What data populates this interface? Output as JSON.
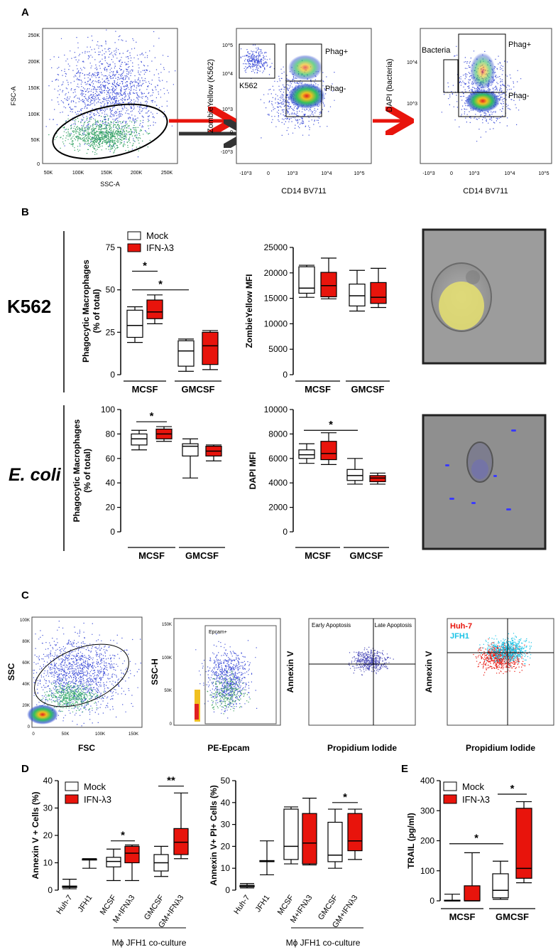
{
  "colors": {
    "mock": "#ffffff",
    "ifn": "#e8140c",
    "red_arrow": "#e8140c",
    "dark_arrow": "#333333",
    "cyan": "#19c3e6"
  },
  "panelA": {
    "letter": "A",
    "plot1": {
      "ylabel": "FSC-A",
      "xlabel": "SSC-A",
      "yticks": [
        "250K",
        "200K",
        "150K",
        "100K",
        "50K",
        "0"
      ],
      "xticks": [
        "50K",
        "100K",
        "150K",
        "200K",
        "250K"
      ]
    },
    "plot2": {
      "ylabel": "ZombieYellow (K562)",
      "xlabel": "CD14 BV711",
      "gates": [
        "K562",
        "Phag+",
        "Phag-"
      ],
      "yticks": [
        "10^5",
        "10^4",
        "10^3",
        "0",
        "-10^3"
      ],
      "xticks": [
        "-10^3",
        "0",
        "10^3",
        "10^4",
        "10^5"
      ]
    },
    "plot3": {
      "ylabel": "DAPI (bacteria)",
      "xlabel": "CD14 BV711",
      "gates": [
        "Bacteria",
        "Phag+",
        "Phag-"
      ],
      "yticks": [
        "10^4",
        "10^3"
      ],
      "xticks": [
        "-10^3",
        "0",
        "10^3",
        "10^4",
        "10^5"
      ]
    }
  },
  "panelB": {
    "letter": "B",
    "row_labels": [
      "K562",
      "E. coli"
    ],
    "legend": [
      "Mock",
      "IFN-λ3"
    ],
    "groups": [
      "MCSF",
      "GMCSF"
    ],
    "sig": "*"
  },
  "panelC": {
    "letter": "C",
    "plot1": {
      "ylabel": "SSC",
      "xlabel": "FSC",
      "yticks": [
        "100K",
        "80K",
        "60K",
        "40K",
        "20K",
        "0"
      ],
      "xticks": [
        "0",
        "50K",
        "100K",
        "150K"
      ]
    },
    "plot2": {
      "ylabel": "SSC-H",
      "xlabel": "PE-Epcam",
      "gate": "Epcam+",
      "yticks": [
        "150K",
        "100K",
        "50K",
        "0"
      ]
    },
    "plot3": {
      "ylabel": "Annexin V",
      "xlabel": "Propidium Iodide",
      "q1": "Early Apoptosis",
      "q2": "Late Apoptosis"
    },
    "plot4": {
      "ylabel": "Annexin V",
      "xlabel": "Propidium Iodide",
      "legend": [
        "Huh-7",
        "JFH1"
      ]
    }
  },
  "panelD": {
    "letter": "D",
    "coculture": "Mϕ JFH1 co-culture"
  },
  "panelE": {
    "letter": "E"
  },
  "chart_data": [
    {
      "id": "B_K562_pct",
      "type": "box",
      "ylabel": "Phagocytic Macrophages (% of total)",
      "ylim": [
        0,
        75
      ],
      "yticks": [
        0,
        25,
        50,
        75
      ],
      "categories": [
        "MCSF",
        "GMCSF"
      ],
      "series": [
        {
          "name": "Mock",
          "boxes": [
            [
              19,
              22,
              29,
              38,
              40
            ],
            [
              2,
              5,
              14,
              20,
              21
            ]
          ]
        },
        {
          "name": "IFN-λ3",
          "boxes": [
            [
              30,
              33,
              37,
              44,
              47
            ],
            [
              3,
              6,
              17,
              25,
              26
            ]
          ]
        }
      ],
      "sig": [
        {
          "from": 0,
          "to": 1,
          "level": 61,
          "label": "*"
        },
        {
          "from": 0,
          "to": 2,
          "level": 50,
          "label": "*"
        }
      ]
    },
    {
      "id": "B_K562_mfi",
      "type": "box",
      "ylabel": "ZombieYellow MFI",
      "ylim": [
        0,
        25000
      ],
      "yticks": [
        0,
        5000,
        10000,
        15000,
        20000,
        25000
      ],
      "categories": [
        "MCSF",
        "GMCSF"
      ],
      "series": [
        {
          "name": "Mock",
          "boxes": [
            [
              15200,
              16000,
              17000,
              21200,
              21500
            ],
            [
              12500,
              13500,
              15500,
              17800,
              20500
            ]
          ]
        },
        {
          "name": "IFN-λ3",
          "boxes": [
            [
              14900,
              15300,
              17500,
              20100,
              22900
            ],
            [
              13200,
              14000,
              15200,
              18100,
              20900
            ]
          ]
        }
      ],
      "sig": []
    },
    {
      "id": "B_Ecoli_pct",
      "type": "box",
      "ylabel": "Phagocytic Macrophages (% of total)",
      "ylim": [
        0,
        100
      ],
      "yticks": [
        0,
        20,
        40,
        60,
        80,
        100
      ],
      "categories": [
        "MCSF",
        "GMCSF"
      ],
      "series": [
        {
          "name": "Mock",
          "boxes": [
            [
              67,
              71,
              76,
              80,
              83
            ],
            [
              44,
              62,
              70,
              72,
              76
            ]
          ]
        },
        {
          "name": "IFN-λ3",
          "boxes": [
            [
              74,
              76,
              80,
              84,
              86
            ],
            [
              58,
              62,
              66,
              70,
              71
            ]
          ]
        }
      ],
      "sig": [
        {
          "from": 0,
          "to": 1,
          "level": 90,
          "label": "*"
        }
      ]
    },
    {
      "id": "B_Ecoli_mfi",
      "type": "box",
      "ylabel": "DAPI MFI",
      "ylim": [
        0,
        10000
      ],
      "yticks": [
        0,
        2000,
        4000,
        6000,
        8000,
        10000
      ],
      "categories": [
        "MCSF",
        "GMCSF"
      ],
      "series": [
        {
          "name": "Mock",
          "boxes": [
            [
              5600,
              6000,
              6300,
              6700,
              7200
            ],
            [
              3900,
              4200,
              4600,
              5100,
              6000
            ]
          ]
        },
        {
          "name": "IFN-λ3",
          "boxes": [
            [
              5500,
              5900,
              6400,
              7400,
              8100
            ],
            [
              3900,
              4100,
              4400,
              4600,
              4800
            ]
          ]
        }
      ],
      "sig": [
        {
          "from": 0,
          "to": 2,
          "level": 8300,
          "label": "*"
        }
      ]
    },
    {
      "id": "D_annexin",
      "type": "box",
      "ylabel": "Annexin V + Cells (%)",
      "ylim": [
        0,
        40
      ],
      "yticks": [
        0,
        10,
        20,
        30,
        40
      ],
      "categories": [
        "Huh-7",
        "JFH1",
        "MCSF",
        "M+IFNλ3",
        "GMCSF",
        "GM+IFNλ3"
      ],
      "fills": [
        "none",
        "none",
        "mock",
        "ifn",
        "mock",
        "ifn"
      ],
      "boxes": [
        [
          0.5,
          1,
          1.2,
          1.5,
          4
        ],
        [
          8,
          11,
          11.2,
          11.4,
          11.5
        ],
        [
          3.5,
          8.5,
          10.5,
          12,
          15
        ],
        [
          3.5,
          10,
          13.5,
          16,
          16.5
        ],
        [
          5,
          7,
          10,
          13,
          16
        ],
        [
          11.5,
          13,
          17.5,
          22.5,
          35.5
        ]
      ],
      "sig": [
        {
          "from": 2,
          "to": 3,
          "level": 18,
          "label": "*"
        },
        {
          "from": 4,
          "to": 5,
          "level": 38,
          "label": "**"
        }
      ],
      "legend": [
        "Mock",
        "IFN-λ3"
      ]
    },
    {
      "id": "D_annexin_pi",
      "type": "box",
      "ylabel": "Annexin V+ PI+ Cells (%)",
      "ylim": [
        0,
        50
      ],
      "yticks": [
        0,
        10,
        20,
        30,
        40,
        50
      ],
      "categories": [
        "Huh-7",
        "JFH1",
        "MCSF",
        "M+IFNλ3",
        "GMCSF",
        "GM+IFNλ3"
      ],
      "fills": [
        "none",
        "none",
        "mock",
        "ifn",
        "mock",
        "ifn"
      ],
      "boxes": [
        [
          1,
          1.5,
          2,
          2.2,
          3
        ],
        [
          7,
          13,
          13.2,
          13.5,
          22.5
        ],
        [
          12,
          14,
          20,
          37,
          38
        ],
        [
          11.5,
          12,
          21.5,
          35,
          42
        ],
        [
          10,
          13,
          16,
          31,
          37
        ],
        [
          14,
          18,
          22.5,
          35,
          37
        ]
      ],
      "sig": [
        {
          "from": 4,
          "to": 5,
          "level": 40,
          "label": "*"
        }
      ]
    },
    {
      "id": "E_trail",
      "type": "box",
      "ylabel": "TRAIL (pg/ml)",
      "ylim": [
        0,
        400
      ],
      "yticks": [
        0,
        100,
        200,
        300,
        400
      ],
      "categories": [
        "MCSF",
        "GMCSF"
      ],
      "series": [
        {
          "name": "Mock",
          "boxes": [
            [
              0,
              0,
              0,
              2,
              22
            ],
            [
              5,
              10,
              35,
              90,
              132
            ]
          ]
        },
        {
          "name": "IFN-λ3",
          "boxes": [
            [
              0,
              0,
              0,
              50,
              160
            ],
            [
              60,
              75,
              108,
              308,
              330
            ]
          ]
        }
      ],
      "sig": [
        {
          "from": 0,
          "to": 2,
          "level": 190,
          "label": "*"
        },
        {
          "from": 2,
          "to": 3,
          "level": 355,
          "label": "*"
        }
      ],
      "legend": [
        "Mock",
        "IFN-λ3"
      ]
    }
  ]
}
